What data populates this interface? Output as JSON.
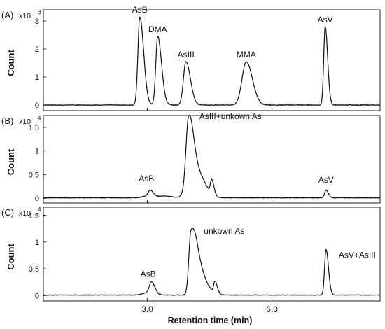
{
  "chart_data": [
    {
      "type": "line",
      "panel_label": "(A)",
      "scale_label": "x10",
      "scale_exp": "3",
      "ylabel": "Count",
      "xlim": [
        0.5,
        8.6
      ],
      "ylim": [
        -0.2,
        3.4
      ],
      "yticks": [
        0,
        1,
        2,
        3
      ],
      "baseline": 0,
      "peaks": [
        {
          "name": "AsB",
          "x": 2.82,
          "y": 3.15,
          "sigma": 0.045,
          "tail": 0.08
        },
        {
          "name": "DMA",
          "x": 3.25,
          "y": 2.45,
          "sigma": 0.045,
          "tail": 0.08
        },
        {
          "name": "AsIII",
          "x": 3.93,
          "y": 1.55,
          "sigma": 0.06,
          "tail": 0.08
        },
        {
          "name": "MMA",
          "x": 5.38,
          "y": 1.55,
          "sigma": 0.1,
          "tail": 0.08
        },
        {
          "name": "AsV",
          "x": 7.28,
          "y": 2.8,
          "sigma": 0.035,
          "tail": 0.04
        }
      ],
      "labels": [
        {
          "text": "AsB",
          "x": 2.82,
          "y": 3.2
        },
        {
          "text": "DMA",
          "x": 3.25,
          "y": 2.5
        },
        {
          "text": "AsIII",
          "x": 3.93,
          "y": 1.6
        },
        {
          "text": "MMA",
          "x": 5.38,
          "y": 1.6
        },
        {
          "text": "AsV",
          "x": 7.28,
          "y": 2.85
        }
      ]
    },
    {
      "type": "line",
      "panel_label": "(B)",
      "scale_label": "x10",
      "scale_exp": "4",
      "ylabel": "Count",
      "xlim": [
        0.5,
        8.6
      ],
      "ylim": [
        -0.1,
        1.75
      ],
      "yticks": [
        0,
        0.5,
        1,
        1.5
      ],
      "ytick_labels": [
        "0",
        "0.5",
        "1",
        "1.5"
      ],
      "baseline": 0.01,
      "peaks": [
        {
          "name": "AsB",
          "x": 3.07,
          "y": 0.14,
          "sigma": 0.05,
          "tail": 0.05
        },
        {
          "name": "",
          "x": 2.95,
          "y": 0.03,
          "sigma": 0.1,
          "tail": 0.05
        },
        {
          "name": "",
          "x": 3.4,
          "y": 0.04,
          "sigma": 0.15,
          "tail": 0.05
        },
        {
          "name": "AsIII+unkown As",
          "x": 3.99,
          "y": 1.3,
          "sigma": 0.06,
          "tail": 0.1
        },
        {
          "name": "",
          "x": 4.08,
          "y": 0.55,
          "sigma": 0.12,
          "tail": 0.15
        },
        {
          "name": "",
          "x": 4.33,
          "y": 0.14,
          "sigma": 0.1,
          "tail": 0.1
        },
        {
          "name": "",
          "x": 4.55,
          "y": 0.3,
          "sigma": 0.03,
          "tail": 0.04
        },
        {
          "name": "AsV",
          "x": 7.3,
          "y": 0.16,
          "sigma": 0.035,
          "tail": 0.04
        }
      ],
      "labels": [
        {
          "text": "AsB",
          "x": 2.98,
          "y": 0.3
        },
        {
          "text": "AsIII+unkown As",
          "x": 5.0,
          "y": 1.62
        },
        {
          "text": "AsV",
          "x": 7.3,
          "y": 0.27
        }
      ]
    },
    {
      "type": "line",
      "panel_label": "(C)",
      "scale_label": "x10",
      "scale_exp": "4",
      "ylabel": "Count",
      "xlim": [
        0.5,
        8.6
      ],
      "ylim": [
        -0.1,
        1.65
      ],
      "yticks": [
        0,
        0.5,
        1,
        1.5
      ],
      "ytick_labels": [
        "0",
        "0.5",
        "1",
        "1.5"
      ],
      "baseline": 0.01,
      "peaks": [
        {
          "name": "AsB",
          "x": 3.1,
          "y": 0.22,
          "sigma": 0.05,
          "tail": 0.05
        },
        {
          "name": "",
          "x": 3.0,
          "y": 0.04,
          "sigma": 0.12,
          "tail": 0.05
        },
        {
          "name": "unkown As",
          "x": 4.05,
          "y": 1.1,
          "sigma": 0.05,
          "tail": 0.15
        },
        {
          "name": "",
          "x": 4.2,
          "y": 0.35,
          "sigma": 0.1,
          "tail": 0.1
        },
        {
          "name": "",
          "x": 4.4,
          "y": 0.1,
          "sigma": 0.1,
          "tail": 0.1
        },
        {
          "name": "",
          "x": 4.63,
          "y": 0.22,
          "sigma": 0.03,
          "tail": 0.04
        },
        {
          "name": "AsV+AsIII",
          "x": 7.3,
          "y": 0.85,
          "sigma": 0.035,
          "tail": 0.04
        }
      ],
      "labels": [
        {
          "text": "AsB",
          "x": 3.02,
          "y": 0.3
        },
        {
          "text": "unkown As",
          "x": 4.85,
          "y": 1.1
        },
        {
          "text": "AsV+AsIII",
          "x": 8.05,
          "y": 0.65
        }
      ]
    }
  ],
  "x_axis": {
    "label": "Retention time (min)",
    "ticks": [
      3.0,
      6.0
    ],
    "tick_labels": [
      "3.0",
      "6.0"
    ],
    "xlim": [
      0.5,
      8.6
    ]
  }
}
